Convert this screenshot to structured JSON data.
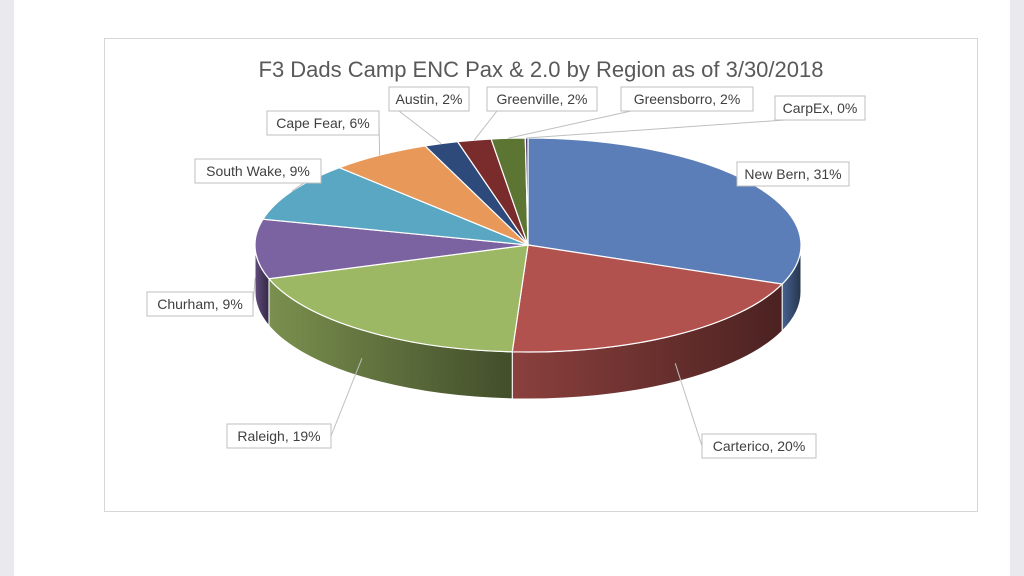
{
  "chart_data": {
    "type": "pie",
    "title": "F3 Dads Camp ENC Pax & 2.0 by Region as of 3/30/2018",
    "slices": [
      {
        "name": "New Bern",
        "value": 31,
        "label": "New Bern, 31%",
        "color": "#5B7DB8"
      },
      {
        "name": "Carterico",
        "value": 20,
        "label": "Carterico, 20%",
        "color": "#B2524E"
      },
      {
        "name": "Raleigh",
        "value": 19,
        "label": "Raleigh, 19%",
        "color": "#9DB864"
      },
      {
        "name": "Churham",
        "value": 9,
        "label": "Churham, 9%",
        "color": "#7B62A0"
      },
      {
        "name": "South Wake",
        "value": 9,
        "label": "South Wake, 9%",
        "color": "#5AA7C3"
      },
      {
        "name": "Cape Fear",
        "value": 6,
        "label": "Cape Fear, 6%",
        "color": "#E8995A"
      },
      {
        "name": "Austin",
        "value": 2,
        "label": "Austin, 2%",
        "color": "#2E4A7A"
      },
      {
        "name": "Greenville",
        "value": 2,
        "label": "Greenville, 2%",
        "color": "#7A2C2C"
      },
      {
        "name": "Greensborro",
        "value": 2,
        "label": "Greensborro, 2%",
        "color": "#5C7533"
      },
      {
        "name": "CarpEx",
        "value": 0,
        "label": "CarpEx, 0%",
        "color": "#4A3A6A"
      }
    ],
    "legend": "none",
    "data_labels": "outside with leader lines",
    "style": "3d"
  }
}
